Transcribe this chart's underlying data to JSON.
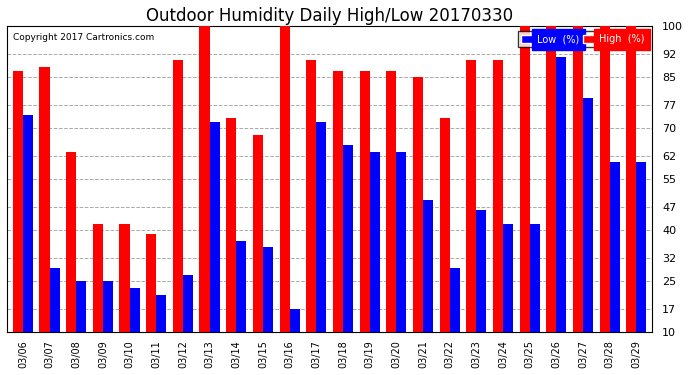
{
  "title": "Outdoor Humidity Daily High/Low 20170330",
  "copyright": "Copyright 2017 Cartronics.com",
  "legend_low_label": "Low  (%)",
  "legend_high_label": "High  (%)",
  "dates": [
    "03/06",
    "03/07",
    "03/08",
    "03/09",
    "03/10",
    "03/11",
    "03/12",
    "03/13",
    "03/14",
    "03/15",
    "03/16",
    "03/17",
    "03/18",
    "03/19",
    "03/20",
    "03/21",
    "03/22",
    "03/23",
    "03/24",
    "03/25",
    "03/26",
    "03/27",
    "03/28",
    "03/29"
  ],
  "high": [
    87,
    88,
    63,
    42,
    42,
    39,
    90,
    100,
    73,
    68,
    100,
    90,
    87,
    87,
    87,
    85,
    73,
    90,
    90,
    100,
    100,
    100,
    100,
    100
  ],
  "low": [
    74,
    29,
    25,
    25,
    23,
    21,
    27,
    72,
    37,
    35,
    17,
    72,
    65,
    63,
    63,
    49,
    29,
    46,
    42,
    42,
    91,
    79,
    60,
    60
  ],
  "ylim": [
    10,
    100
  ],
  "yticks": [
    10,
    17,
    25,
    32,
    40,
    47,
    55,
    62,
    70,
    77,
    85,
    92,
    100
  ],
  "background_color": "#ffffff",
  "plot_bg_color": "#ffffff",
  "grid_color": "#aaaaaa",
  "bar_color_high": "#ff0000",
  "bar_color_low": "#0000ff",
  "title_fontsize": 12,
  "bar_width": 0.38
}
